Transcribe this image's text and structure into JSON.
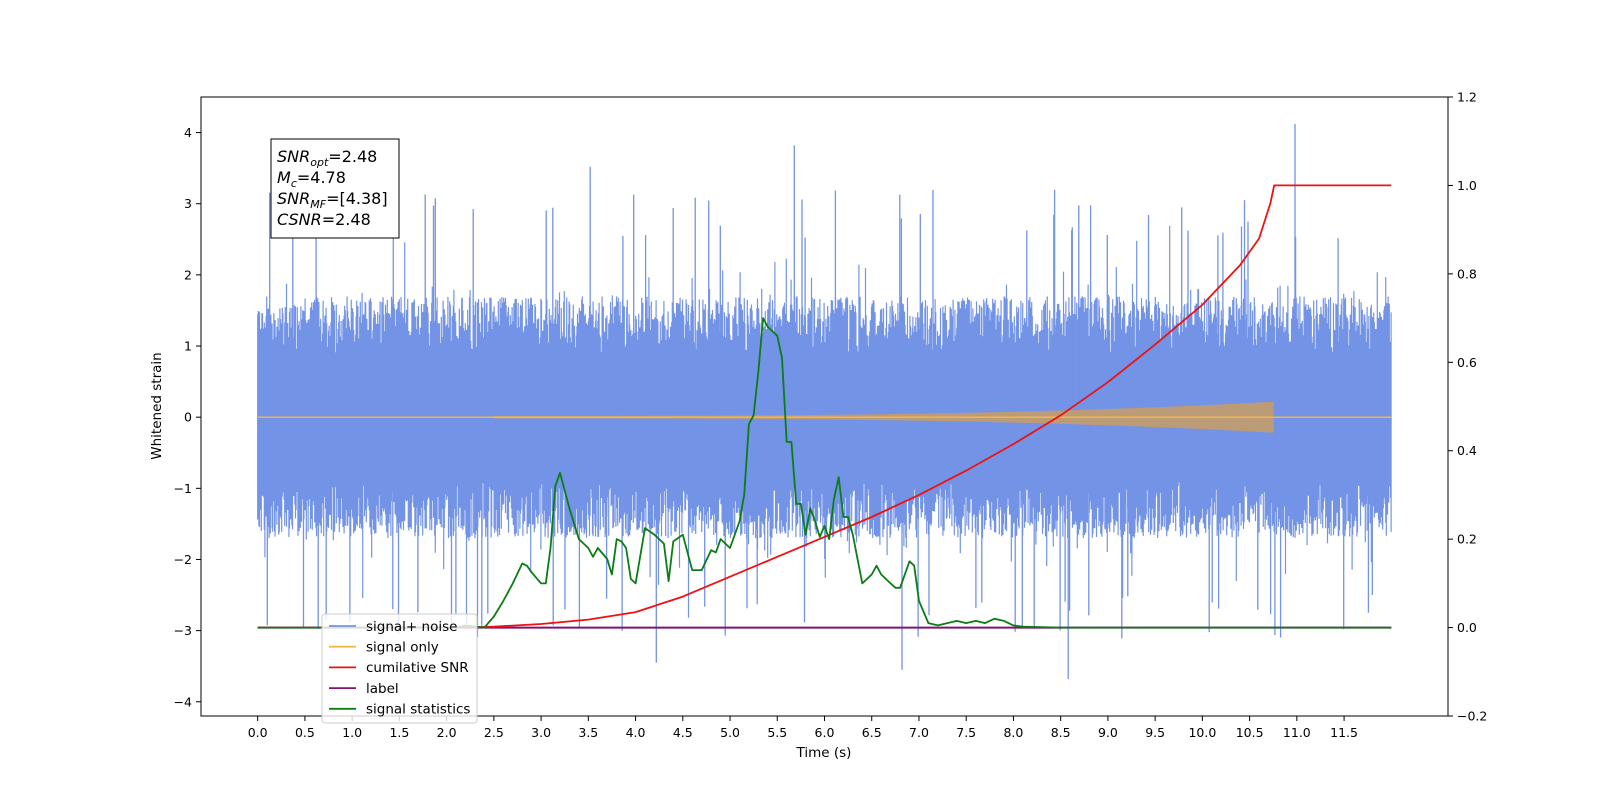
{
  "chart_data": {
    "type": "line",
    "xlabel": "Time (s)",
    "ylabel": "Whitened strain",
    "xlim": [
      -0.6,
      12.6
    ],
    "ylim_left": [
      -4.2,
      4.5
    ],
    "ylim_right": [
      -0.2,
      1.2
    ],
    "x_ticks": [
      "0.0",
      "0.5",
      "1.0",
      "1.5",
      "2.0",
      "2.5",
      "3.0",
      "3.5",
      "4.0",
      "4.5",
      "5.0",
      "5.5",
      "6.0",
      "6.5",
      "7.0",
      "7.5",
      "8.0",
      "8.5",
      "9.0",
      "9.5",
      "10.0",
      "10.5",
      "11.0",
      "11.5"
    ],
    "y_ticks_left": [
      "4",
      "3",
      "2",
      "1",
      "0",
      "−1",
      "−2",
      "−3",
      "−4"
    ],
    "y_ticks_right": [
      "1.2",
      "1.0",
      "0.8",
      "0.6",
      "0.4",
      "0.2",
      "0.0",
      "−0.2"
    ],
    "info_box": [
      {
        "sym": "SNR",
        "sub": "opt",
        "val": "=2.48"
      },
      {
        "sym": "M",
        "sub": "c",
        "val": "=4.78"
      },
      {
        "sym": "SNR",
        "sub": "MF",
        "val": "=[4.38]"
      },
      {
        "sym": "CSNR",
        "sub": "",
        "val": "=2.48"
      }
    ],
    "series": [
      {
        "name": "signal+ noise",
        "axis": "left",
        "color": "#7393e6",
        "description": "noisy whitened strain, t in [0, 12], mostly within +/-2.5 with spikes up to 4.12",
        "peaks": [
          {
            "x": 3.52,
            "y": 3.52
          },
          {
            "x": 5.68,
            "y": 3.82
          },
          {
            "x": 10.98,
            "y": 4.12
          },
          {
            "x": 8.58,
            "y": -3.68
          },
          {
            "x": 6.82,
            "y": -3.55
          },
          {
            "x": 4.22,
            "y": -3.45
          }
        ]
      },
      {
        "name": "signal only",
        "axis": "left",
        "color": "#f5b74c",
        "description": "chirp signal starting near 2.5 s growing to amplitude ~0.2 ending at 10.75 s",
        "end_x": 10.75,
        "max_amplitude": 0.2
      },
      {
        "name": "cumilative SNR",
        "axis": "right",
        "color": "#ee1111",
        "x": [
          0,
          2.0,
          2.5,
          3.0,
          3.5,
          4.0,
          4.5,
          5.0,
          5.5,
          6.0,
          6.5,
          7.0,
          7.5,
          8.0,
          8.5,
          9.0,
          9.5,
          10.0,
          10.4,
          10.6,
          10.72,
          10.76,
          12.0
        ],
        "y": [
          0,
          0,
          0.002,
          0.008,
          0.018,
          0.035,
          0.07,
          0.115,
          0.16,
          0.205,
          0.25,
          0.3,
          0.355,
          0.415,
          0.48,
          0.555,
          0.64,
          0.73,
          0.82,
          0.88,
          0.96,
          1.0,
          1.0
        ]
      },
      {
        "name": "label",
        "axis": "right",
        "color": "#7b1473",
        "x": [
          0,
          12
        ],
        "y": [
          0,
          0
        ]
      },
      {
        "name": "signal statistics",
        "axis": "right",
        "color": "#0b7d14",
        "x": [
          0,
          2.1,
          2.2,
          2.3,
          2.4,
          2.5,
          2.6,
          2.7,
          2.8,
          2.85,
          2.9,
          3.0,
          3.05,
          3.1,
          3.15,
          3.2,
          3.3,
          3.4,
          3.5,
          3.55,
          3.6,
          3.7,
          3.75,
          3.8,
          3.85,
          3.9,
          3.95,
          4.0,
          4.1,
          4.2,
          4.3,
          4.35,
          4.4,
          4.5,
          4.6,
          4.7,
          4.8,
          4.85,
          4.9,
          5.0,
          5.1,
          5.15,
          5.2,
          5.25,
          5.3,
          5.35,
          5.4,
          5.5,
          5.55,
          5.6,
          5.65,
          5.7,
          5.75,
          5.8,
          5.85,
          5.9,
          5.95,
          6.0,
          6.05,
          6.1,
          6.15,
          6.2,
          6.25,
          6.3,
          6.4,
          6.5,
          6.55,
          6.6,
          6.7,
          6.75,
          6.8,
          6.9,
          6.95,
          7.0,
          7.1,
          7.2,
          7.3,
          7.4,
          7.5,
          7.6,
          7.7,
          7.8,
          7.9,
          8.0,
          8.1,
          8.3,
          8.5,
          12.0
        ],
        "y": [
          0,
          0,
          0.005,
          0.002,
          0.0,
          0.025,
          0.06,
          0.1,
          0.145,
          0.14,
          0.125,
          0.1,
          0.1,
          0.18,
          0.32,
          0.35,
          0.27,
          0.2,
          0.18,
          0.16,
          0.18,
          0.155,
          0.12,
          0.2,
          0.195,
          0.18,
          0.11,
          0.1,
          0.225,
          0.21,
          0.19,
          0.105,
          0.195,
          0.21,
          0.13,
          0.13,
          0.175,
          0.17,
          0.2,
          0.18,
          0.24,
          0.3,
          0.46,
          0.48,
          0.58,
          0.7,
          0.68,
          0.66,
          0.61,
          0.42,
          0.42,
          0.28,
          0.28,
          0.21,
          0.27,
          0.24,
          0.205,
          0.23,
          0.2,
          0.29,
          0.34,
          0.25,
          0.25,
          0.21,
          0.1,
          0.12,
          0.14,
          0.12,
          0.1,
          0.09,
          0.09,
          0.15,
          0.14,
          0.06,
          0.01,
          0.005,
          0.01,
          0.015,
          0.01,
          0.015,
          0.01,
          0.02,
          0.015,
          0.005,
          0.002,
          0.001,
          0.0,
          0.0
        ]
      }
    ],
    "legend": {
      "placement": "lower-left",
      "entries": [
        {
          "label": "signal+ noise",
          "color": "#7393e6"
        },
        {
          "label": "signal only",
          "color": "#f5b74c"
        },
        {
          "label": "cumilative SNR",
          "color": "#ee1111"
        },
        {
          "label": "label",
          "color": "#7b1473"
        },
        {
          "label": "signal statistics",
          "color": "#0b7d14"
        }
      ]
    }
  }
}
